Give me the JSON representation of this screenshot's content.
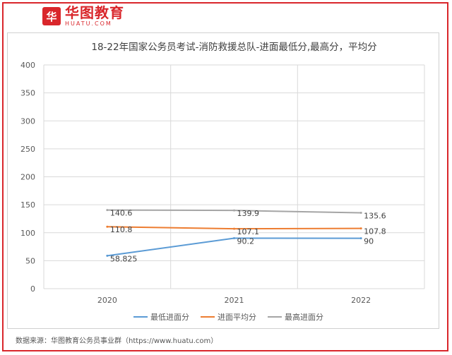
{
  "brand": {
    "logo_mark": "华",
    "logo_name": "华图教育",
    "logo_sub": "HUATU.COM"
  },
  "source_note": "数据来源：华图教育公务员事业群（https://www.huatu.com）",
  "colors": {
    "frame": "#d9262b",
    "series_low": "#5b9bd5",
    "series_avg": "#ed7d31",
    "series_high": "#a5a5a5",
    "grid": "#d9d9d9"
  },
  "chart_data": {
    "type": "line",
    "title": "18-22年国家公务员考试-消防救援总队-进面最低分,最高分，平均分",
    "categories": [
      "2020",
      "2021",
      "2022"
    ],
    "ylim": [
      0,
      400
    ],
    "yticks": [
      0,
      50,
      100,
      150,
      200,
      250,
      300,
      350,
      400
    ],
    "grid": true,
    "legend_position": "bottom",
    "series": [
      {
        "name": "最低进面分",
        "color": "#5b9bd5",
        "values": [
          58.825,
          90.2,
          90
        ],
        "labels": [
          "58.825",
          "90.2",
          "90"
        ]
      },
      {
        "name": "进面平均分",
        "color": "#ed7d31",
        "values": [
          110.8,
          107.1,
          107.8
        ],
        "labels": [
          "110.8",
          "107.1",
          "107.8"
        ]
      },
      {
        "name": "最高进面分",
        "color": "#a5a5a5",
        "values": [
          140.6,
          139.9,
          135.6
        ],
        "labels": [
          "140.6",
          "139.9",
          "135.6"
        ]
      }
    ]
  }
}
